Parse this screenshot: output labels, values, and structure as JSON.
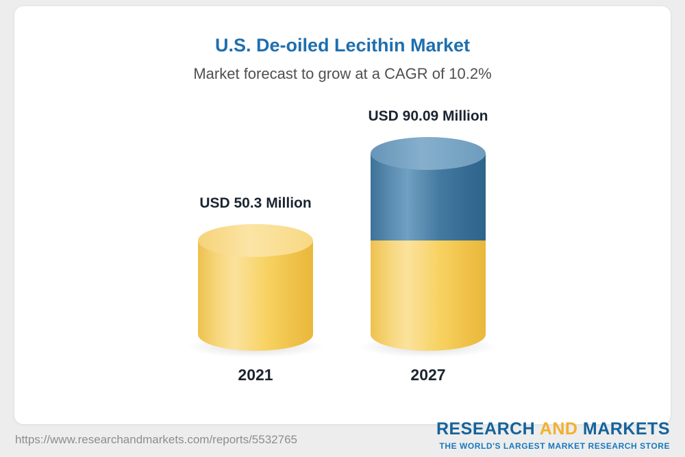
{
  "chart_data": {
    "type": "bar",
    "variant": "3d-cylinder",
    "title": "U.S. De-oiled Lecithin Market",
    "subtitle": "Market forecast to grow at a CAGR of 10.2%",
    "categories": [
      "2021",
      "2027"
    ],
    "values": [
      50.3,
      90.09
    ],
    "value_labels": [
      "USD 50.3 Million",
      "USD 90.09 Million"
    ],
    "unit": "USD Million",
    "axes_shown": false,
    "legend_shown": false,
    "colors": {
      "base_segment": "#f5cf64",
      "growth_segment": "#43789e",
      "title_text": "#1e6fae",
      "subtitle_text": "#4f4f4f",
      "label_text": "#1b2430"
    }
  },
  "footer": {
    "url": "https://www.researchandmarkets.com/reports/5532765",
    "logo": {
      "research": "RESEARCH",
      "and": "AND",
      "markets": "MARKETS"
    },
    "tagline": "THE WORLD'S LARGEST MARKET RESEARCH STORE"
  }
}
